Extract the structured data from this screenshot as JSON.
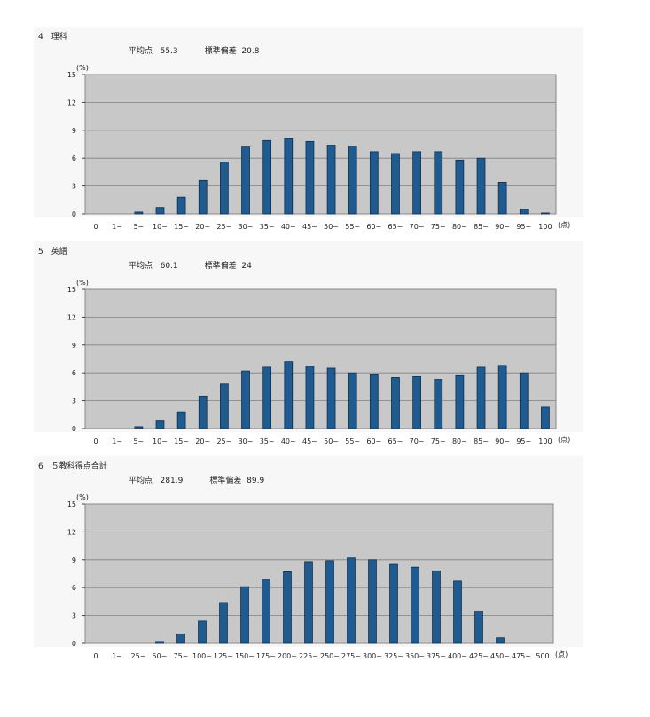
{
  "sections": [
    {
      "title": "4　理科",
      "mean_label": "平均点",
      "mean_value": "55.3",
      "sd_label": "標準偏差",
      "sd_value": "20.8"
    },
    {
      "title": "5　英語",
      "mean_label": "平均点",
      "mean_value": "60.1",
      "sd_label": "標準偏差",
      "sd_value": "24"
    },
    {
      "title": "6　５教科得点合計",
      "mean_label": "平均点",
      "mean_value": "281.9",
      "sd_label": "標準偏差",
      "sd_value": "89.9"
    }
  ],
  "colors": {
    "plot_bg": "#c8c8c8",
    "bar_fill": "#1f5b8f",
    "bar_edge": "#0d2f50",
    "grid": "#808080"
  },
  "chart_data": [
    {
      "type": "bar",
      "ylabel": "(%)",
      "xunit": "(点)",
      "ylim": [
        0,
        15
      ],
      "yticks": [
        "0",
        "3",
        "6",
        "9",
        "12",
        "15"
      ],
      "grid": true,
      "categories": [
        "0",
        "1~",
        "5~",
        "10~",
        "15~",
        "20~",
        "25~",
        "30~",
        "35~",
        "40~",
        "45~",
        "50~",
        "55~",
        "60~",
        "65~",
        "70~",
        "75~",
        "80~",
        "85~",
        "90~",
        "95~",
        "100"
      ],
      "values": [
        0,
        0,
        0.2,
        0.7,
        1.8,
        3.6,
        5.6,
        7.2,
        7.9,
        8.1,
        7.8,
        7.4,
        7.3,
        6.7,
        6.5,
        6.7,
        6.7,
        5.8,
        6.0,
        3.4,
        0.5,
        0.1
      ]
    },
    {
      "type": "bar",
      "ylabel": "(%)",
      "xunit": "(点)",
      "ylim": [
        0,
        15
      ],
      "yticks": [
        "0",
        "3",
        "6",
        "9",
        "12",
        "15"
      ],
      "grid": true,
      "categories": [
        "0",
        "1~",
        "5~",
        "10~",
        "15~",
        "20~",
        "25~",
        "30~",
        "35~",
        "40~",
        "45~",
        "50~",
        "55~",
        "60~",
        "65~",
        "70~",
        "75~",
        "80~",
        "85~",
        "90~",
        "95~",
        "100"
      ],
      "values": [
        0,
        0,
        0.2,
        0.9,
        1.8,
        3.5,
        4.8,
        6.2,
        6.6,
        7.2,
        6.7,
        6.5,
        6.0,
        5.8,
        5.5,
        5.6,
        5.3,
        5.7,
        6.6,
        6.8,
        6.0,
        2.3
      ]
    },
    {
      "type": "bar",
      "ylabel": "(%)",
      "xunit": "(点)",
      "ylim": [
        0,
        15
      ],
      "yticks": [
        "0",
        "3",
        "6",
        "9",
        "12",
        "15"
      ],
      "grid": true,
      "categories": [
        "0",
        "1~",
        "25~",
        "50~",
        "75~",
        "100~",
        "125~",
        "150~",
        "175~",
        "200~",
        "225~",
        "250~",
        "275~",
        "300~",
        "325~",
        "350~",
        "375~",
        "400~",
        "425~",
        "450~",
        "475~",
        "500"
      ],
      "values": [
        0,
        0,
        0,
        0.2,
        1.0,
        2.4,
        4.4,
        6.1,
        6.9,
        7.7,
        8.8,
        8.9,
        9.2,
        9.0,
        8.5,
        8.2,
        7.8,
        6.7,
        3.5,
        0.6,
        0,
        0
      ]
    }
  ]
}
